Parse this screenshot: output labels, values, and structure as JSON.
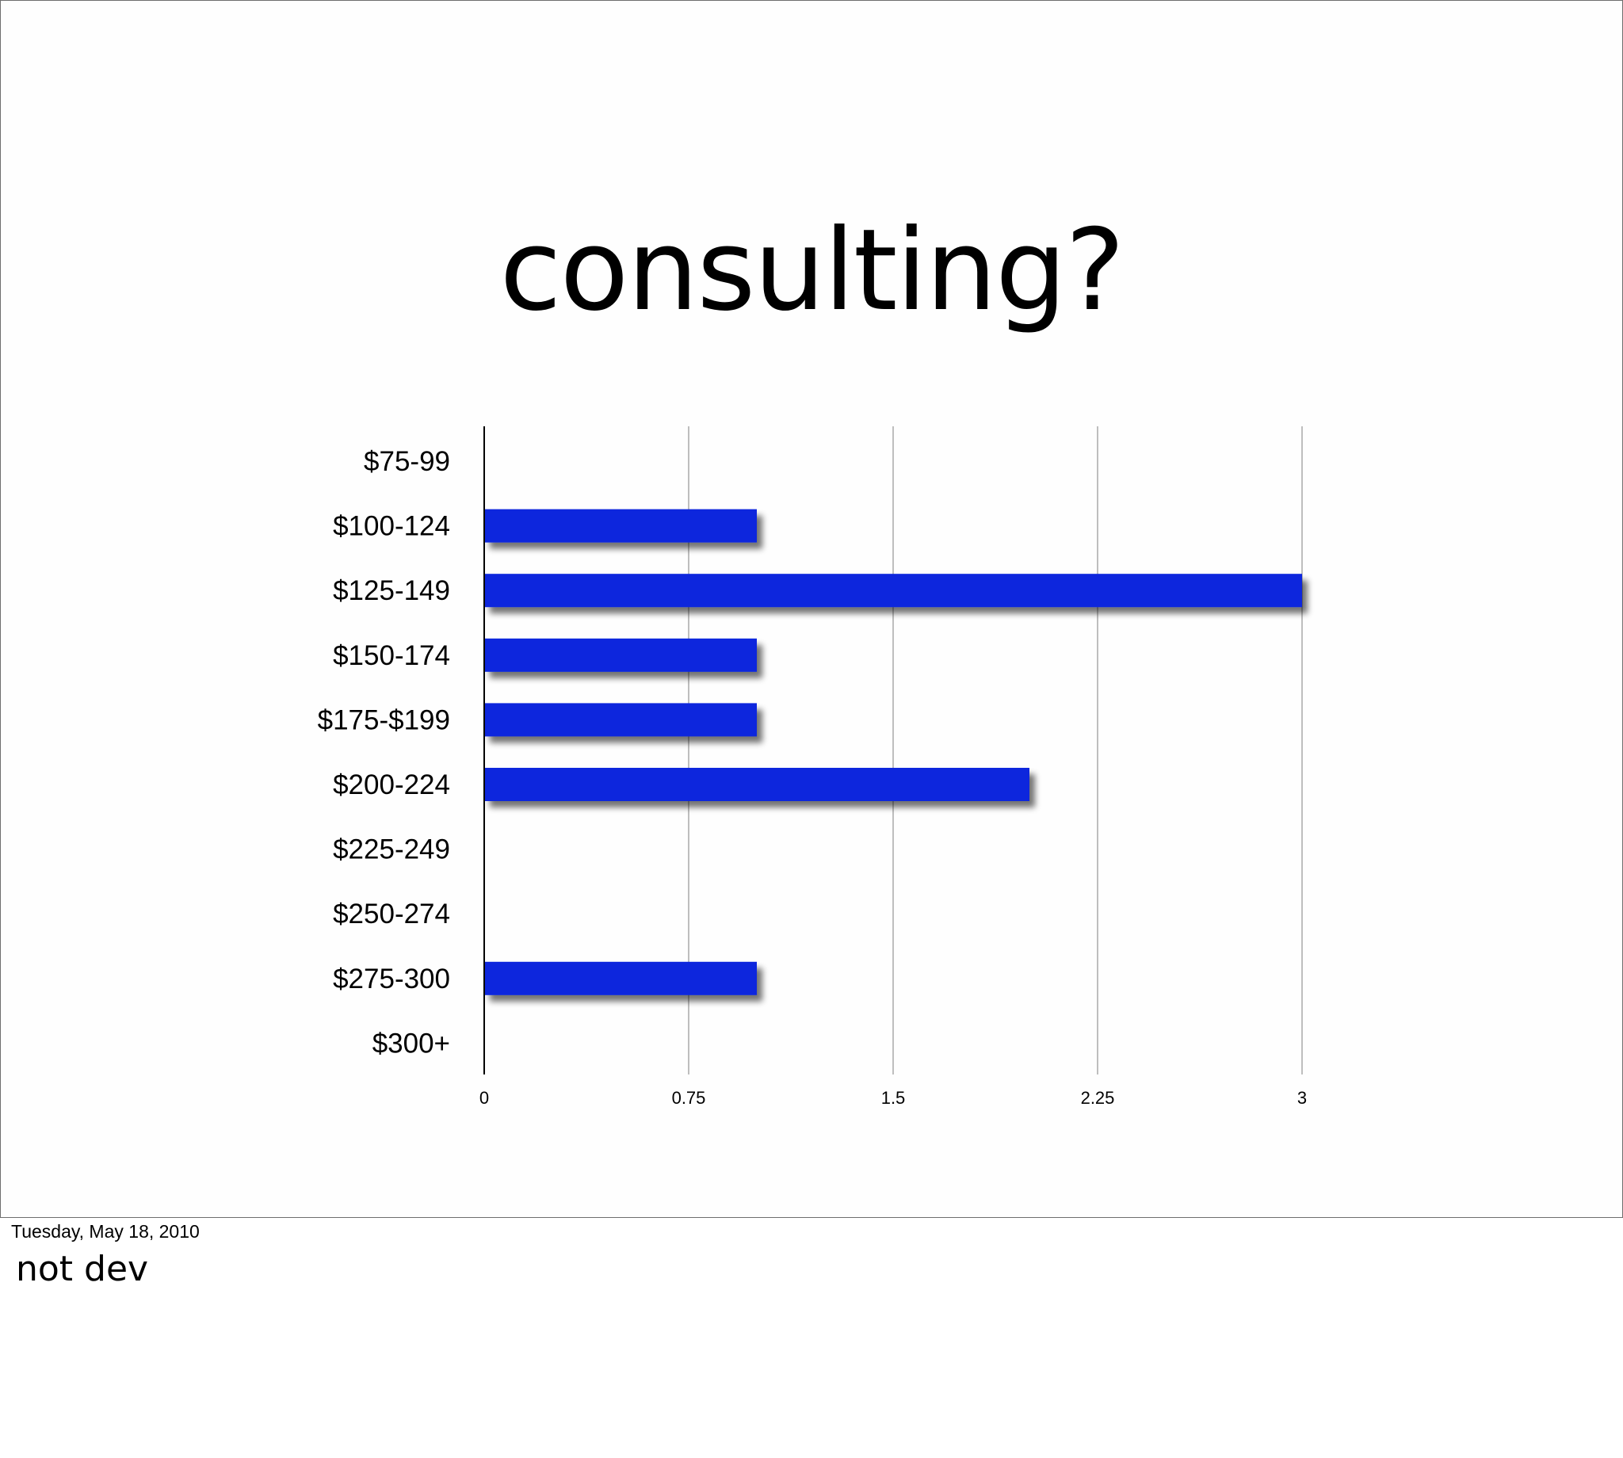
{
  "slide": {
    "title": "consulting?"
  },
  "footer": {
    "date": "Tuesday, May 18, 2010",
    "notes": "not dev"
  },
  "chart_data": {
    "type": "bar",
    "orientation": "horizontal",
    "title": "consulting?",
    "xlabel": "",
    "ylabel": "",
    "categories": [
      "$75-99",
      "$100-124",
      "$125-149",
      "$150-174",
      "$175-$199",
      "$200-224",
      "$225-249",
      "$250-274",
      "$275-300",
      "$300+"
    ],
    "values": [
      0,
      1,
      3,
      1,
      1,
      2,
      0,
      0,
      1,
      0
    ],
    "xlim": [
      0,
      3
    ],
    "xticks": [
      "0",
      "0.75",
      "1.5",
      "2.25",
      "3"
    ],
    "xtick_values": [
      0,
      0.75,
      1.5,
      2.25,
      3
    ],
    "grid": "vertical",
    "legend": "none",
    "bar_color": "#0a28dd"
  }
}
